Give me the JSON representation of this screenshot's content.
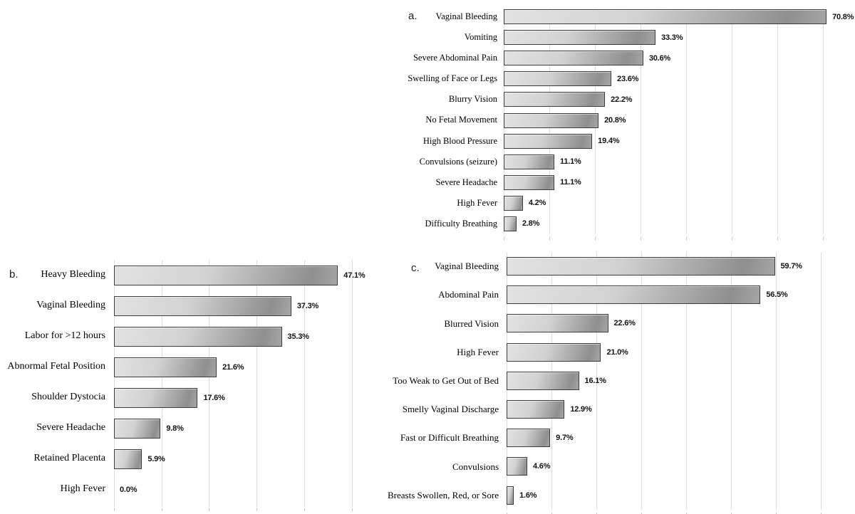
{
  "figure": {
    "background": "#ffffff",
    "description": "Three-panel horizontal bar chart figure of reported symptoms with percentage data labels"
  },
  "colors": {
    "background": "#ffffff",
    "bar_border": "#3d3d3d",
    "bar_gradient_light": "#e2e2e2",
    "bar_gradient_mid": "#d2d2d2",
    "bar_gradient_dark": "#8f8f8f",
    "bar_gradient_end": "#a6a6a6",
    "gridline": "#dcdcdc",
    "category_text": "#000000",
    "value_text": "#111111"
  },
  "chart_data": [
    {
      "panel_label": "a.",
      "type": "bar",
      "orientation": "horizontal",
      "unit": "%",
      "xlim": [
        0,
        75
      ],
      "gridline_step": 10,
      "grid": true,
      "legend": false,
      "xlabel": "",
      "ylabel": "",
      "categories": [
        "Vaginal Bleeding",
        "Vomiting",
        "Severe Abdominal Pain",
        "Swelling of Face or Legs",
        "Blurry Vision",
        "No Fetal Movement",
        "High Blood Pressure",
        "Convulsions (seizure)",
        "Severe Headache",
        "High Fever",
        "Difficulty Breathing"
      ],
      "values": [
        70.8,
        33.3,
        30.6,
        23.6,
        22.2,
        20.8,
        19.4,
        11.1,
        11.1,
        4.2,
        2.8
      ],
      "value_labels": [
        "70.8%",
        "33.3%",
        "30.6%",
        "23.6%",
        "22.2%",
        "20.8%",
        "19.4%",
        "11.1%",
        "11.1%",
        "4.2%",
        "2.8%"
      ]
    },
    {
      "panel_label": "b.",
      "type": "bar",
      "orientation": "horizontal",
      "unit": "%",
      "xlim": [
        0,
        55
      ],
      "gridline_step": 10,
      "grid": true,
      "legend": false,
      "xlabel": "",
      "ylabel": "",
      "categories": [
        "Heavy Bleeding",
        "Vaginal Bleeding",
        "Labor for >12 hours",
        "Abnormal Fetal Position",
        "Shoulder Dystocia",
        "Severe Headache",
        "Retained Placenta",
        "High Fever"
      ],
      "values": [
        47.1,
        37.3,
        35.3,
        21.6,
        17.6,
        9.8,
        5.9,
        0.0
      ],
      "value_labels": [
        "47.1%",
        "37.3%",
        "35.3%",
        "21.6%",
        "17.6%",
        "9.8%",
        "5.9%",
        "0.0%"
      ]
    },
    {
      "panel_label": "c.",
      "type": "bar",
      "orientation": "horizontal",
      "unit": "%",
      "xlim": [
        0,
        75
      ],
      "gridline_step": 10,
      "grid": true,
      "legend": false,
      "xlabel": "",
      "ylabel": "",
      "categories": [
        "Vaginal Bleeding",
        "Abdominal Pain",
        "Blurred Vision",
        "High Fever",
        "Too Weak to Get Out of Bed",
        "Smelly Vaginal Discharge",
        "Fast or Difficult Breathing",
        "Convulsions",
        "Breasts Swollen, Red, or Sore"
      ],
      "values": [
        59.7,
        56.5,
        22.6,
        21.0,
        16.1,
        12.9,
        9.7,
        4.6,
        1.6
      ],
      "value_labels": [
        "59.7%",
        "56.5%",
        "22.6%",
        "21.0%",
        "16.1%",
        "12.9%",
        "9.7%",
        "4.6%",
        "1.6%"
      ]
    }
  ]
}
